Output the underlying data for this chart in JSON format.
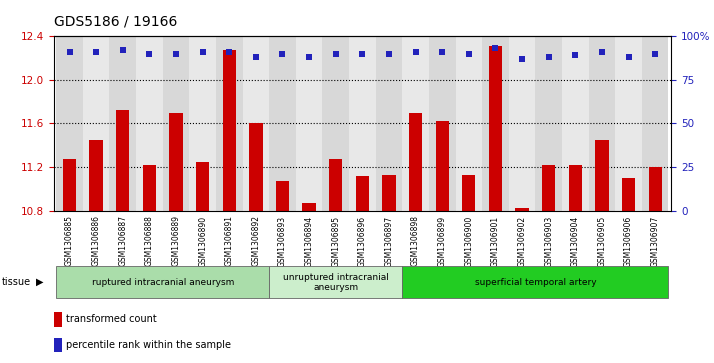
{
  "title": "GDS5186 / 19166",
  "samples": [
    "GSM1306885",
    "GSM1306886",
    "GSM1306887",
    "GSM1306888",
    "GSM1306889",
    "GSM1306890",
    "GSM1306891",
    "GSM1306892",
    "GSM1306893",
    "GSM1306894",
    "GSM1306895",
    "GSM1306896",
    "GSM1306897",
    "GSM1306898",
    "GSM1306899",
    "GSM1306900",
    "GSM1306901",
    "GSM1306902",
    "GSM1306903",
    "GSM1306904",
    "GSM1306905",
    "GSM1306906",
    "GSM1306907"
  ],
  "bar_values": [
    11.27,
    11.45,
    11.72,
    11.22,
    11.7,
    11.25,
    12.27,
    11.6,
    11.07,
    10.87,
    11.27,
    11.12,
    11.13,
    11.7,
    11.62,
    11.13,
    12.31,
    10.82,
    11.22,
    11.22,
    11.45,
    11.1,
    11.2
  ],
  "percentile_values": [
    91,
    91,
    92,
    90,
    90,
    91,
    91,
    88,
    90,
    88,
    90,
    90,
    90,
    91,
    91,
    90,
    93,
    87,
    88,
    89,
    91,
    88,
    90
  ],
  "ylim_left": [
    10.8,
    12.4
  ],
  "ylim_right": [
    0,
    100
  ],
  "yticks_left": [
    10.8,
    11.2,
    11.6,
    12.0,
    12.4
  ],
  "yticks_right": [
    0,
    25,
    50,
    75,
    100
  ],
  "dotted_lines": [
    11.2,
    11.6,
    12.0
  ],
  "bar_color": "#cc0000",
  "dot_color": "#2222bb",
  "col_bg_even": "#d8d8d8",
  "col_bg_odd": "#e8e8e8",
  "groups": [
    {
      "label": "ruptured intracranial aneurysm",
      "start": 0,
      "end": 8,
      "color": "#aaddaa"
    },
    {
      "label": "unruptured intracranial\naneurysm",
      "start": 8,
      "end": 13,
      "color": "#cceecc"
    },
    {
      "label": "superficial temporal artery",
      "start": 13,
      "end": 23,
      "color": "#22cc22"
    }
  ],
  "tissue_label": "tissue",
  "legend_bar_label": "transformed count",
  "legend_dot_label": "percentile rank within the sample",
  "title_fontsize": 10,
  "left_color": "#cc0000",
  "right_color": "#2222bb"
}
